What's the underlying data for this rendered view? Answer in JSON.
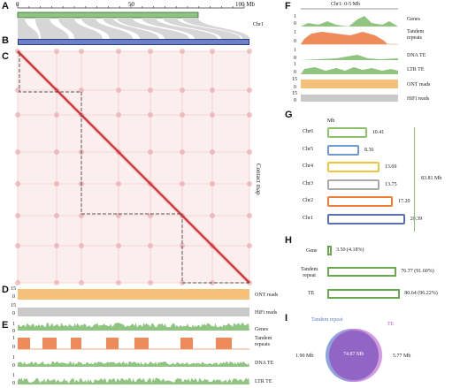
{
  "panel_labels": {
    "a": "A",
    "b": "B",
    "c": "C",
    "d": "D",
    "e": "E",
    "f": "F",
    "g": "G",
    "h": "H",
    "i": "I"
  },
  "panel_a": {
    "ticks": [
      "0",
      "50",
      "100 Mb"
    ],
    "chr_label": "Chr1",
    "colors": {
      "green_bar": "#8fc481",
      "blue_bar": "#6d80c8",
      "links": "#d3d3d3"
    }
  },
  "panel_c": {
    "side_label": "Contact map",
    "color": "#e0504a"
  },
  "panel_d": {
    "tracks": [
      {
        "scale": [
          "15",
          "0"
        ],
        "label": "ONT reads",
        "color": "#f5c07a"
      },
      {
        "scale": [
          "15",
          "0"
        ],
        "label": "HiFi reads",
        "color": "#c9c9c9"
      }
    ]
  },
  "panel_e": {
    "tracks": [
      {
        "scale": [
          "1",
          "0"
        ],
        "label": "Genes",
        "color": "#8fc481"
      },
      {
        "scale": [
          "1",
          "0"
        ],
        "label": "Tandem repeats",
        "label_1": "Tandem",
        "label_2": "repeats",
        "color": "#ef8a5b"
      },
      {
        "scale": [
          "1",
          "0"
        ],
        "label": "DNA TE",
        "color": "#8fc481"
      },
      {
        "scale": [
          "1",
          "0"
        ],
        "label": "LTR TE",
        "color": "#8fc481"
      }
    ]
  },
  "panel_f": {
    "title": "Chr1: 0-5 Mb",
    "tracks": [
      {
        "scale": [
          "1",
          "0"
        ],
        "label": "Genes"
      },
      {
        "scale": [
          "1",
          "0"
        ],
        "label": "Tandem repeats",
        "label_1": "Tandem",
        "label_2": "repeats"
      },
      {
        "scale": [
          "1",
          "0"
        ],
        "label": "DNA TE"
      },
      {
        "scale": [
          "1",
          "0"
        ],
        "label": "LTR TE"
      },
      {
        "scale": [
          "15",
          "0"
        ],
        "label": "ONT reads"
      },
      {
        "scale": [
          "15",
          "0"
        ],
        "label": "HiFi reads"
      }
    ]
  },
  "panel_g": {
    "unit": "Mb",
    "total": "83.81 Mb",
    "chromosomes": [
      {
        "name": "Chr6",
        "value": 10.41,
        "value_text": "10.41",
        "color": "#8bc46b"
      },
      {
        "name": "Chr5",
        "value": 8.36,
        "value_text": "8.36",
        "color": "#6f9ad6"
      },
      {
        "name": "Chr4",
        "value": 13.69,
        "value_text": "13.69",
        "color": "#f2c33d"
      },
      {
        "name": "Chr3",
        "value": 13.75,
        "value_text": "13.75",
        "color": "#a9a9a9"
      },
      {
        "name": "Chr2",
        "value": 17.2,
        "value_text": "17.20",
        "color": "#ee7d36"
      },
      {
        "name": "Chr1",
        "value": 20.39,
        "value_text": "20.39",
        "color": "#5b6fb5"
      }
    ]
  },
  "panel_h": {
    "color": "#6aa84f",
    "items": [
      {
        "name": "Gene",
        "value": 3.5,
        "value_text": "3.50 (4.18%)"
      },
      {
        "name": "Tandem repeat",
        "name_1": "Tandem",
        "name_2": "repeat",
        "value": 76.77,
        "value_text": "76.77 (91.60%)"
      },
      {
        "name": "TE",
        "value": 80.64,
        "value_text": "80.64 (96.22%)"
      }
    ]
  },
  "panel_i": {
    "set_a": "Tandem repeat",
    "set_b": "TE",
    "only_a": "1.90 Mb",
    "only_b": "5.77 Mb",
    "overlap": "74.87 Mb",
    "colors": {
      "a": "#6f8fd8",
      "b": "#c57ad8",
      "overlap": "#8a5fc0"
    }
  }
}
